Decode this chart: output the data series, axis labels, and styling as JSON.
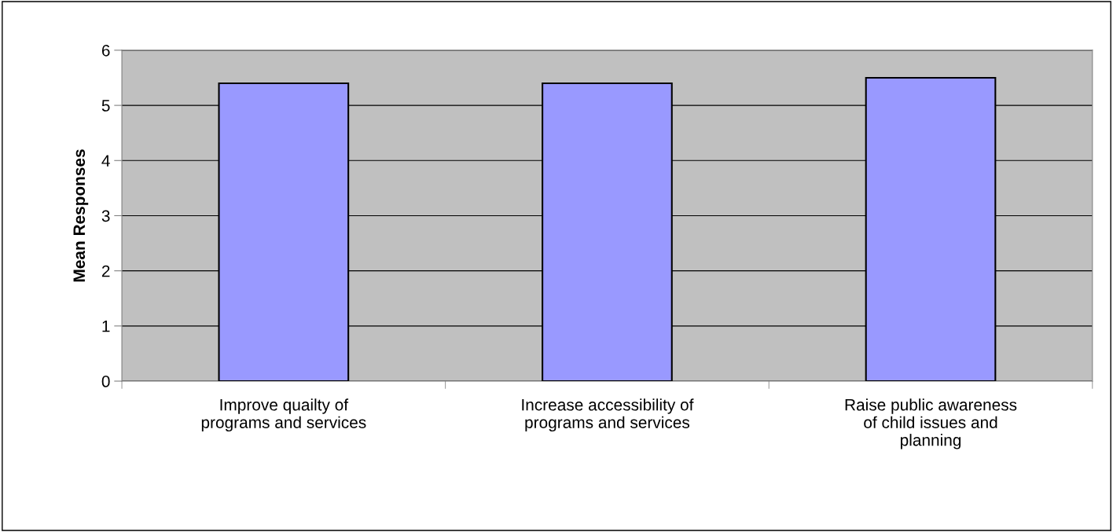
{
  "chart_data": {
    "type": "bar",
    "ylabel": "Mean Responses",
    "categories": [
      "Improve quailty of\nprograms and services",
      "Increase accessibility of\nprograms and services",
      "Raise public awareness\nof child issues and\nplanning"
    ],
    "values": [
      5.4,
      5.4,
      5.5
    ],
    "color": "#9999ff",
    "ylim": [
      0,
      6
    ],
    "yticks": [
      0,
      1,
      2,
      3,
      4,
      5,
      6
    ],
    "grid": "y"
  }
}
